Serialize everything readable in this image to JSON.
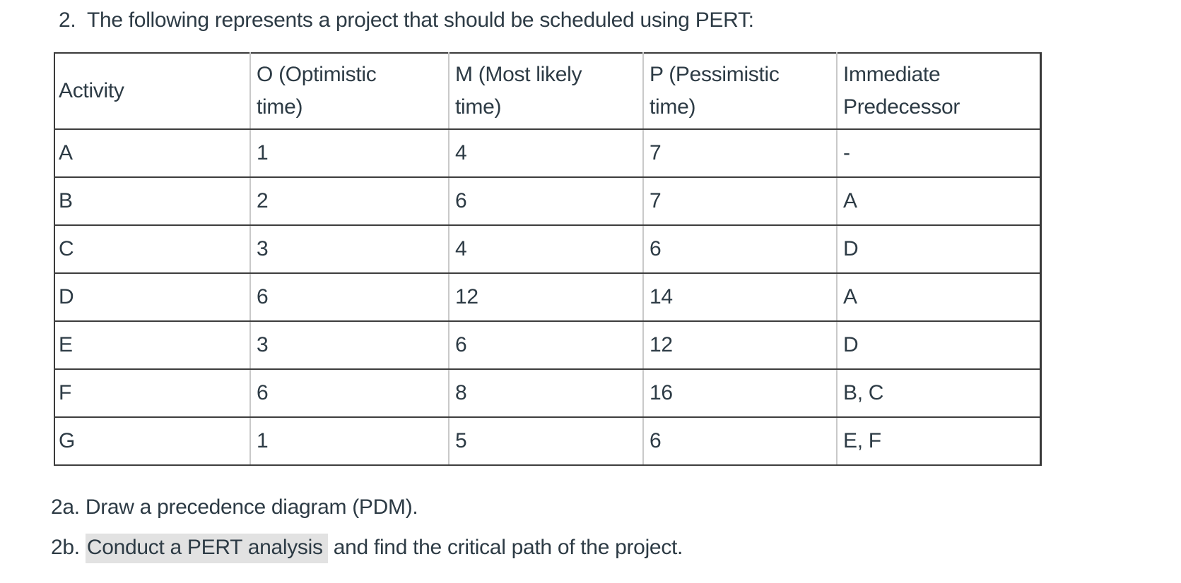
{
  "page": {
    "title": "2.  The following represents a project that should be scheduled using PERT:"
  },
  "table": {
    "columns": [
      "Activity",
      "O (Optimistic time)",
      "M (Most likely time)",
      "P (Pessimistic time)",
      "Immediate Predecessor"
    ],
    "rows": [
      {
        "activity": "A",
        "optimistic": "1",
        "most_likely": "4",
        "pessimistic": "7",
        "predecessor": "-"
      },
      {
        "activity": "B",
        "optimistic": "2",
        "most_likely": "6",
        "pessimistic": "7",
        "predecessor": "A"
      },
      {
        "activity": "C",
        "optimistic": "3",
        "most_likely": "4",
        "pessimistic": "6",
        "predecessor": "D"
      },
      {
        "activity": "D",
        "optimistic": "6",
        "most_likely": "12",
        "pessimistic": "14",
        "predecessor": "A"
      },
      {
        "activity": "E",
        "optimistic": "3",
        "most_likely": "6",
        "pessimistic": "12",
        "predecessor": "D"
      },
      {
        "activity": "F",
        "optimistic": "6",
        "most_likely": "8",
        "pessimistic": "16",
        "predecessor": "B, C"
      },
      {
        "activity": "G",
        "optimistic": "1",
        "most_likely": "5",
        "pessimistic": "6",
        "predecessor": "E, F"
      }
    ]
  },
  "questions": {
    "q2a": "2a. Draw a precedence diagram (PDM).",
    "q2b_prefix": "2b. ",
    "q2b_highlighted": "Conduct a PERT analysis",
    "q2b_suffix": " and find the critical path of the project."
  },
  "colors": {
    "text": "#2d3b45",
    "highlight": "#e2e2e2",
    "row_border": "#3d3d3d",
    "column_border": "#c9c9c9"
  }
}
